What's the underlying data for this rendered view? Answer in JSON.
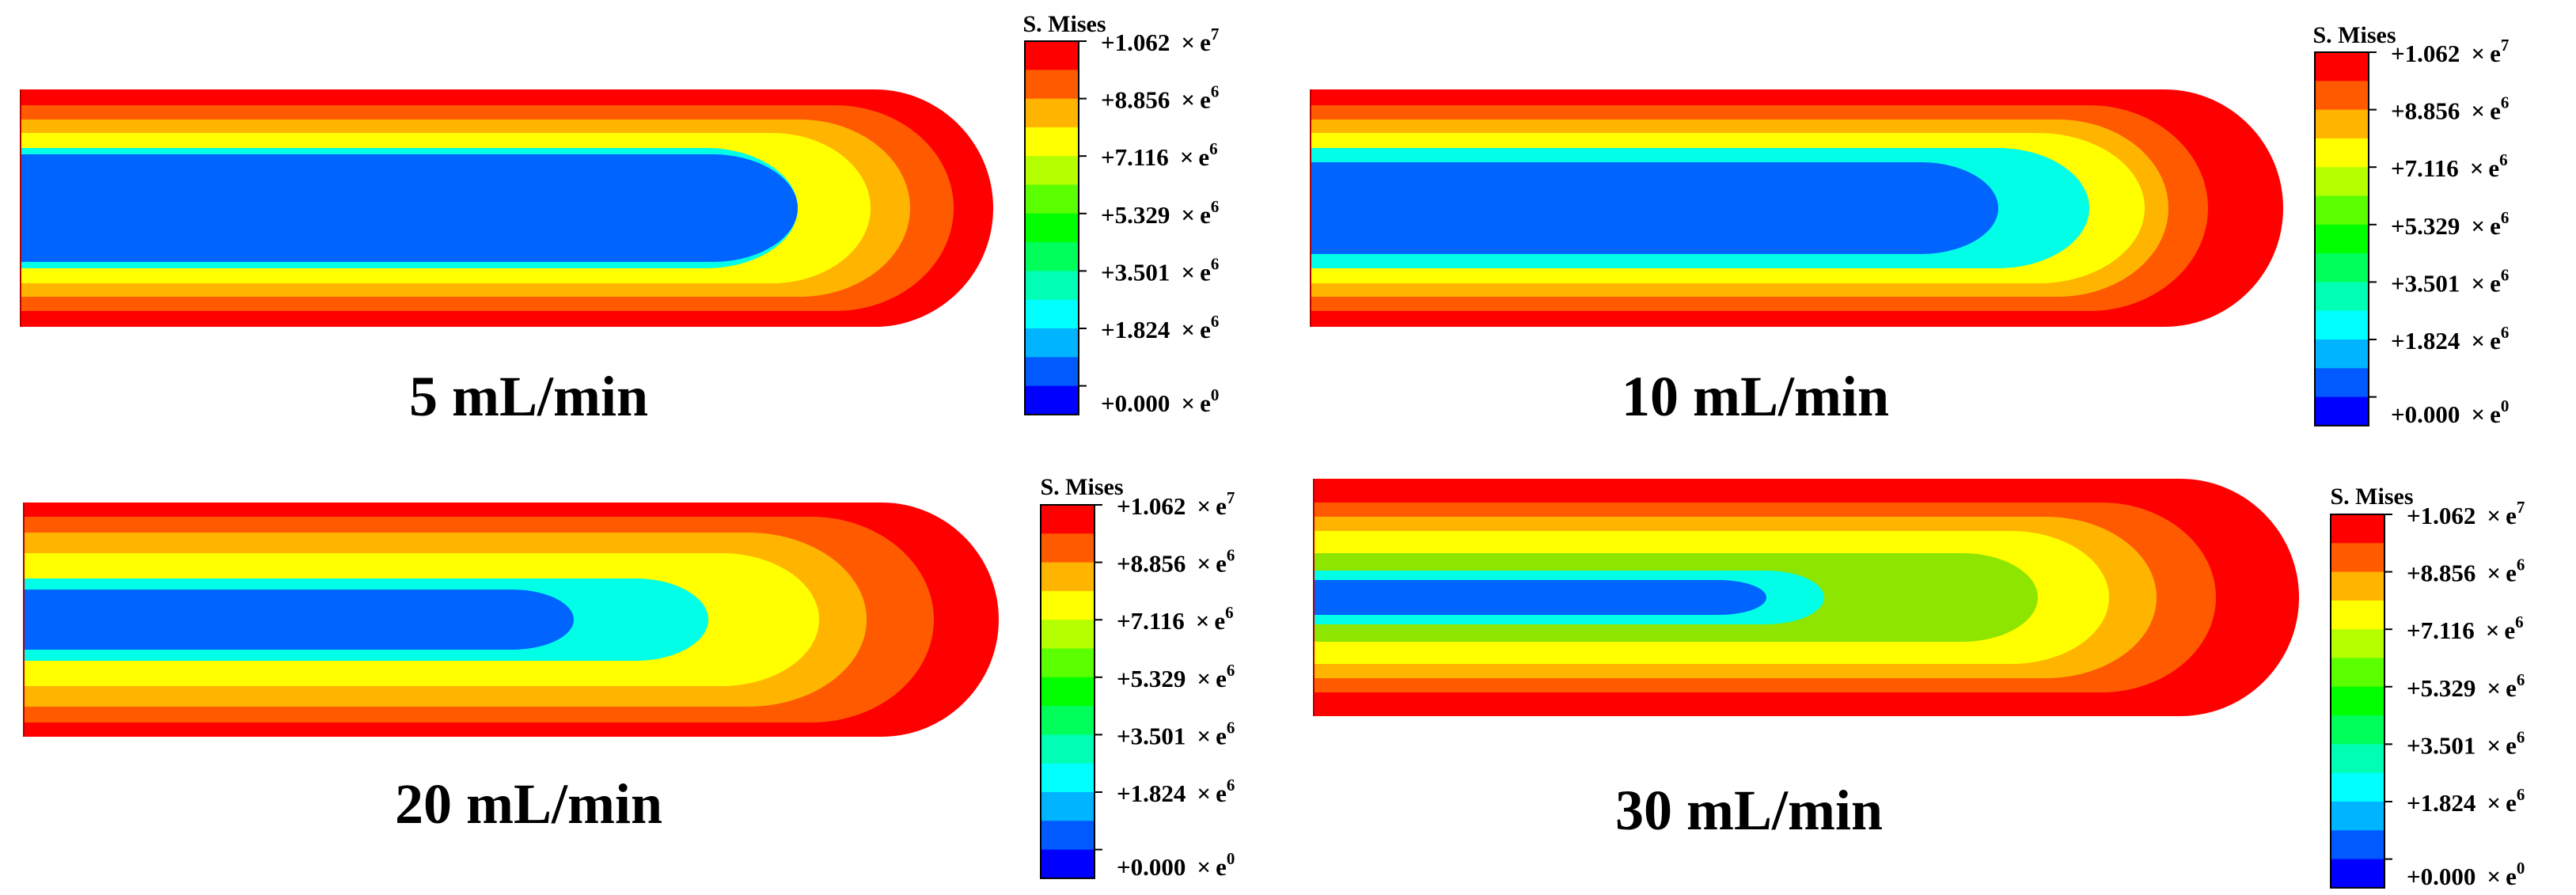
{
  "legend": {
    "title": "S. Mises",
    "labels": [
      {
        "mantissa": "+1.062",
        "exponent": "7"
      },
      {
        "mantissa": "+8.856",
        "exponent": "6"
      },
      {
        "mantissa": "+7.116",
        "exponent": "6"
      },
      {
        "mantissa": "+5.329",
        "exponent": "6"
      },
      {
        "mantissa": "+3.501",
        "exponent": "6"
      },
      {
        "mantissa": "+1.824",
        "exponent": "6"
      },
      {
        "mantissa": "+0.000",
        "exponent": "0"
      }
    ],
    "times_symbol": "×",
    "base": "e",
    "colors": [
      "#ff0000",
      "#ff5a00",
      "#ffb400",
      "#ffff00",
      "#b4ff00",
      "#5aff00",
      "#00ff00",
      "#00ff5a",
      "#00ffb4",
      "#00ffff",
      "#00b4ff",
      "#005aff",
      "#0000ff"
    ]
  },
  "contour_colors": {
    "red": "#ff0000",
    "orange": "#ff5a00",
    "amber": "#ffb400",
    "yellow": "#ffff00",
    "green": "#8ee600",
    "cyan": "#00ffe6",
    "blue": "#0064ff"
  },
  "panels": [
    {
      "caption": "5 mL/min",
      "layers": [
        "red",
        "orange",
        "amber",
        "yellow",
        "cyan",
        "blue"
      ]
    },
    {
      "caption": "10 mL/min",
      "layers": [
        "red",
        "orange",
        "amber",
        "yellow",
        "cyan",
        "blue"
      ]
    },
    {
      "caption": "20 mL/min",
      "layers": [
        "red",
        "orange",
        "amber",
        "yellow",
        "cyan",
        "blue"
      ]
    },
    {
      "caption": "30 mL/min",
      "layers": [
        "red",
        "orange",
        "amber",
        "yellow",
        "green",
        "cyan",
        "blue"
      ]
    }
  ]
}
